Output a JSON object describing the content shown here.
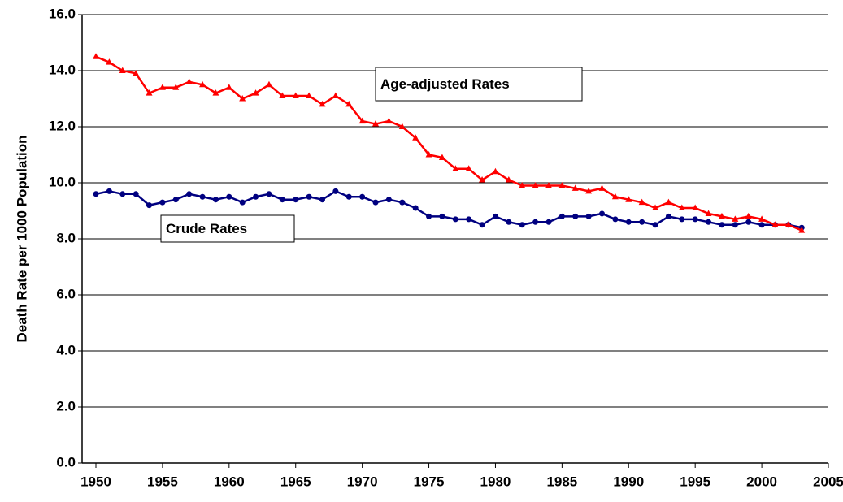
{
  "chart_data": {
    "type": "line",
    "y_label": "Death Rate per 1000 Population",
    "annotations": [
      "Age-adjusted Rates",
      "Crude Rates"
    ],
    "x": [
      1950,
      1951,
      1952,
      1953,
      1954,
      1955,
      1956,
      1957,
      1958,
      1959,
      1960,
      1961,
      1962,
      1963,
      1964,
      1965,
      1966,
      1967,
      1968,
      1969,
      1970,
      1971,
      1972,
      1973,
      1974,
      1975,
      1976,
      1977,
      1978,
      1979,
      1980,
      1981,
      1982,
      1983,
      1984,
      1985,
      1986,
      1987,
      1988,
      1989,
      1990,
      1991,
      1992,
      1993,
      1994,
      1995,
      1996,
      1997,
      1998,
      1999,
      2000,
      2001,
      2002,
      2003
    ],
    "series": [
      {
        "name": "Age-adjusted Rates",
        "color": "#ff0000",
        "marker": "triangle",
        "values": [
          14.5,
          14.3,
          14.0,
          13.9,
          13.2,
          13.4,
          13.4,
          13.6,
          13.5,
          13.2,
          13.4,
          13.0,
          13.2,
          13.5,
          13.1,
          13.1,
          13.1,
          12.8,
          13.1,
          12.8,
          12.2,
          12.1,
          12.2,
          12.0,
          11.6,
          11.0,
          10.9,
          10.5,
          10.5,
          10.1,
          10.4,
          10.1,
          9.9,
          9.9,
          9.9,
          9.9,
          9.8,
          9.7,
          9.8,
          9.5,
          9.4,
          9.3,
          9.1,
          9.3,
          9.1,
          9.1,
          8.9,
          8.8,
          8.7,
          8.8,
          8.7,
          8.5,
          8.5,
          8.3
        ]
      },
      {
        "name": "Crude Rates",
        "color": "#000080",
        "marker": "circle",
        "values": [
          9.6,
          9.7,
          9.6,
          9.6,
          9.2,
          9.3,
          9.4,
          9.6,
          9.5,
          9.4,
          9.5,
          9.3,
          9.5,
          9.6,
          9.4,
          9.4,
          9.5,
          9.4,
          9.7,
          9.5,
          9.5,
          9.3,
          9.4,
          9.3,
          9.1,
          8.8,
          8.8,
          8.7,
          8.7,
          8.5,
          8.8,
          8.6,
          8.5,
          8.6,
          8.6,
          8.8,
          8.8,
          8.8,
          8.9,
          8.7,
          8.6,
          8.6,
          8.5,
          8.8,
          8.7,
          8.7,
          8.6,
          8.5,
          8.5,
          8.6,
          8.5,
          8.5,
          8.5,
          8.4
        ]
      }
    ],
    "xlim": [
      1950,
      2005
    ],
    "xticks": [
      1950,
      1955,
      1960,
      1965,
      1970,
      1975,
      1980,
      1985,
      1990,
      1995,
      2000,
      2005
    ],
    "ylim": [
      0,
      16
    ],
    "yticks": [
      {
        "value": 0,
        "label": "0.0"
      },
      {
        "value": 2,
        "label": "2.0"
      },
      {
        "value": 4,
        "label": "4.0"
      },
      {
        "value": 6,
        "label": "6.0"
      },
      {
        "value": 8,
        "label": "8.0"
      },
      {
        "value": 10,
        "label": "10.0"
      },
      {
        "value": 12,
        "label": "12.0"
      },
      {
        "value": 14,
        "label": "14.0"
      },
      {
        "value": 16,
        "label": "16.0"
      }
    ],
    "grid": true
  }
}
